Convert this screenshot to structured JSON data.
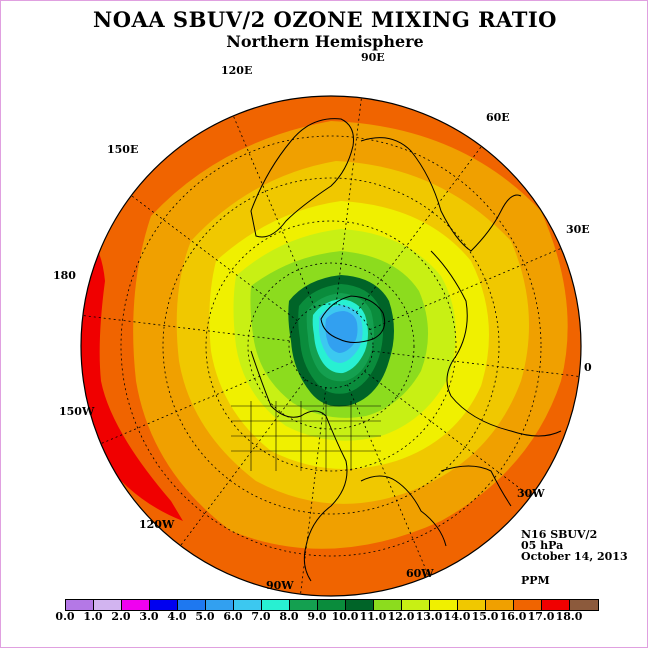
{
  "title": "NOAA SBUV/2 OZONE MIXING RATIO",
  "subtitle": "Northern Hemisphere",
  "info": {
    "satellite": "N16 SBUV/2",
    "level": "05 hPa",
    "date": "October 14, 2013",
    "units": "PPM"
  },
  "longitude_labels": [
    "90E",
    "60E",
    "30E",
    "0",
    "30W",
    "60W",
    "90W",
    "120W",
    "150W",
    "180",
    "150E",
    "120E"
  ],
  "colorbar": {
    "ticks": [
      "0.0",
      "1.0",
      "2.0",
      "3.0",
      "4.0",
      "5.0",
      "6.0",
      "7.0",
      "8.0",
      "9.0",
      "10.0",
      "11.0",
      "12.0",
      "13.0",
      "14.0",
      "15.0",
      "16.0",
      "17.0",
      "18.0"
    ],
    "colors": [
      "#b478e6",
      "#d2b4f0",
      "#f000f0",
      "#0000f0",
      "#1e78f0",
      "#32a0f0",
      "#3cc8f0",
      "#28f0d2",
      "#14a050",
      "#0a8c3c",
      "#006428",
      "#8cdc1e",
      "#c8f014",
      "#f0f000",
      "#f0c800",
      "#f0a000",
      "#f06400",
      "#f00000",
      "#8c5a3c"
    ]
  },
  "chart_data": {
    "type": "polar_contour_map",
    "projection": "north polar stereographic",
    "variable": "ozone mixing ratio",
    "contour_levels": [
      0,
      1,
      2,
      3,
      4,
      5,
      6,
      7,
      8,
      9,
      10,
      11,
      12,
      13,
      14,
      15,
      16,
      17,
      18
    ],
    "field": {
      "north_pole_region": "4-7 ppm minimum, displaced toward Greenland/Canada",
      "ring_around_minimum": "8-10 ppm dark green",
      "mid_latitudes": "11-14 ppm",
      "subtropics": "15-16 ppm",
      "local_maximum": "16-17 ppm over central Pacific near 180"
    }
  }
}
